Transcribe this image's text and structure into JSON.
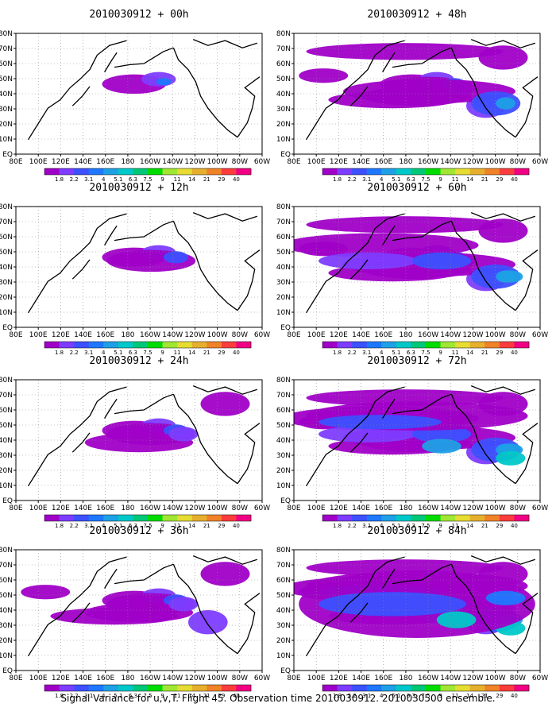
{
  "figure": {
    "caption": "Signal Variance for u,v,T. Flight 45. Observation time 2010030912. 2010030500 ensemble.",
    "lon_labels": [
      "80E",
      "100E",
      "120E",
      "140E",
      "160E",
      "180",
      "160W",
      "140W",
      "120W",
      "100W",
      "80W",
      "60W"
    ],
    "lat_labels": [
      "80N",
      "70N",
      "60N",
      "50N",
      "40N",
      "30N",
      "20N",
      "10N",
      "EQ"
    ],
    "colorbar": {
      "labels": [
        "1.8",
        "2.2",
        "3.1",
        "4",
        "5.1",
        "6.3",
        "7.5",
        "9",
        "11",
        "14",
        "21",
        "29",
        "40"
      ],
      "colors": [
        "#a000c8",
        "#7d3cff",
        "#3c50ff",
        "#1e78ff",
        "#1ea0e6",
        "#00c8c8",
        "#00c878",
        "#00dc00",
        "#a0e632",
        "#e6dc32",
        "#e6af2d",
        "#f08228",
        "#fa3c3c",
        "#f00082"
      ]
    },
    "panels": [
      {
        "title": "2010030912 + 00h",
        "intensity": 0
      },
      {
        "title": "2010030912 + 12h",
        "intensity": 1
      },
      {
        "title": "2010030912 + 24h",
        "intensity": 2
      },
      {
        "title": "2010030912 + 36h",
        "intensity": 3
      },
      {
        "title": "2010030912 + 48h",
        "intensity": 4
      },
      {
        "title": "2010030912 + 60h",
        "intensity": 5
      },
      {
        "title": "2010030912 + 72h",
        "intensity": 6
      },
      {
        "title": "2010030912 + 84h",
        "intensity": 7
      }
    ]
  }
}
